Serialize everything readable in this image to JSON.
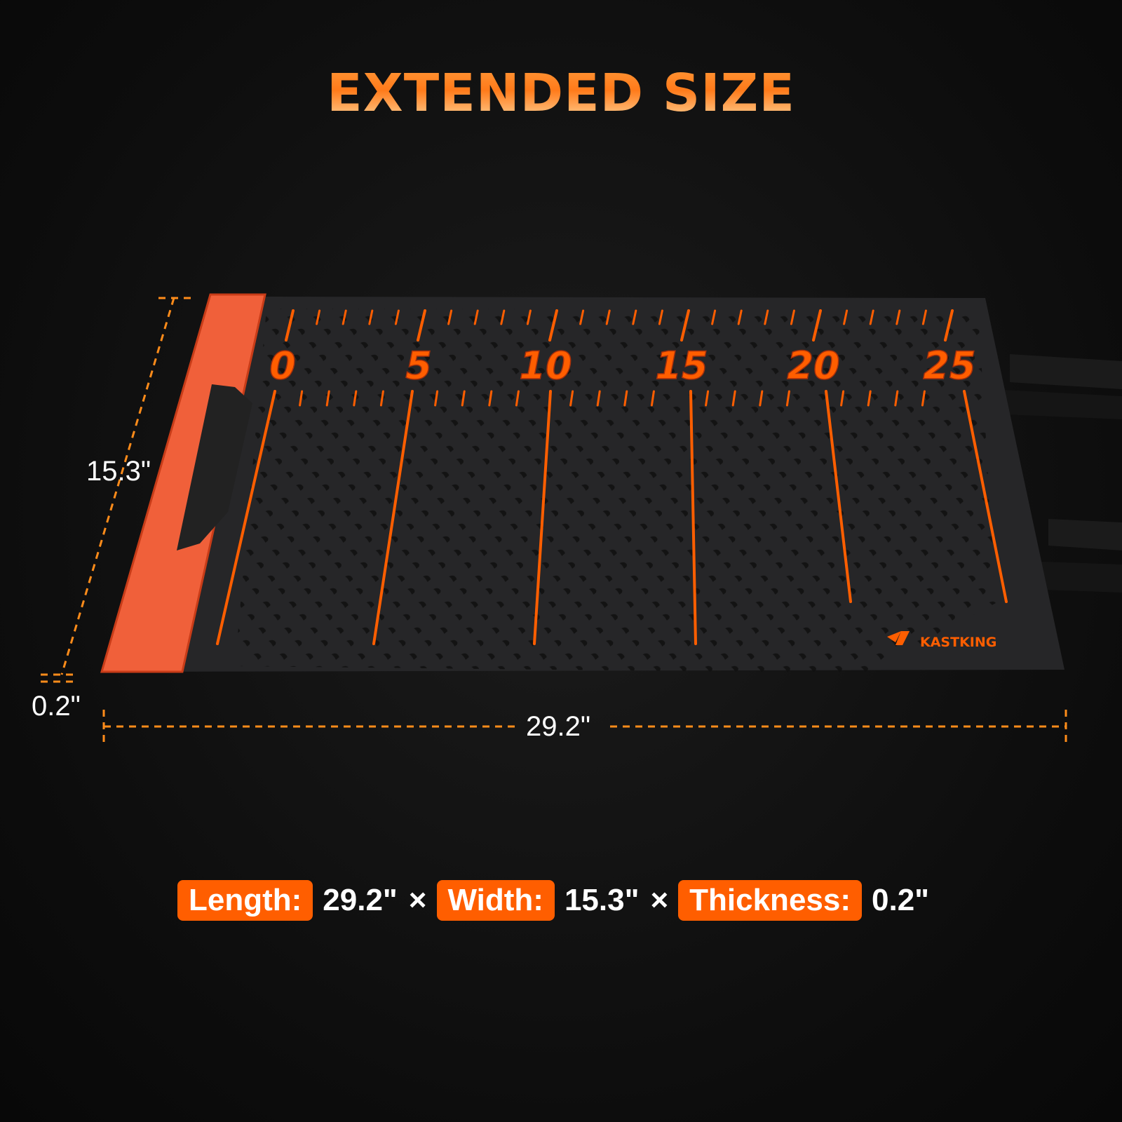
{
  "title": "EXTENDED SIZE",
  "brand": "KASTKING",
  "ruler_numbers": [
    "0",
    "5",
    "10",
    "15",
    "20",
    "25"
  ],
  "dimensions": {
    "width_label": "15.3\"",
    "thickness_label": "0.2\"",
    "length_label": "29.2\""
  },
  "spec": {
    "length_label": "Length:",
    "length_value": "29.2\"",
    "separator": "×",
    "width_label": "Width:",
    "width_value": "15.3\"",
    "thickness_label": "Thickness:",
    "thickness_value": "0.2\""
  },
  "colors": {
    "accent": "#ff5e00",
    "mat": "#262628",
    "handle": "#f0603a",
    "dim_line": "#ff8c1a"
  }
}
